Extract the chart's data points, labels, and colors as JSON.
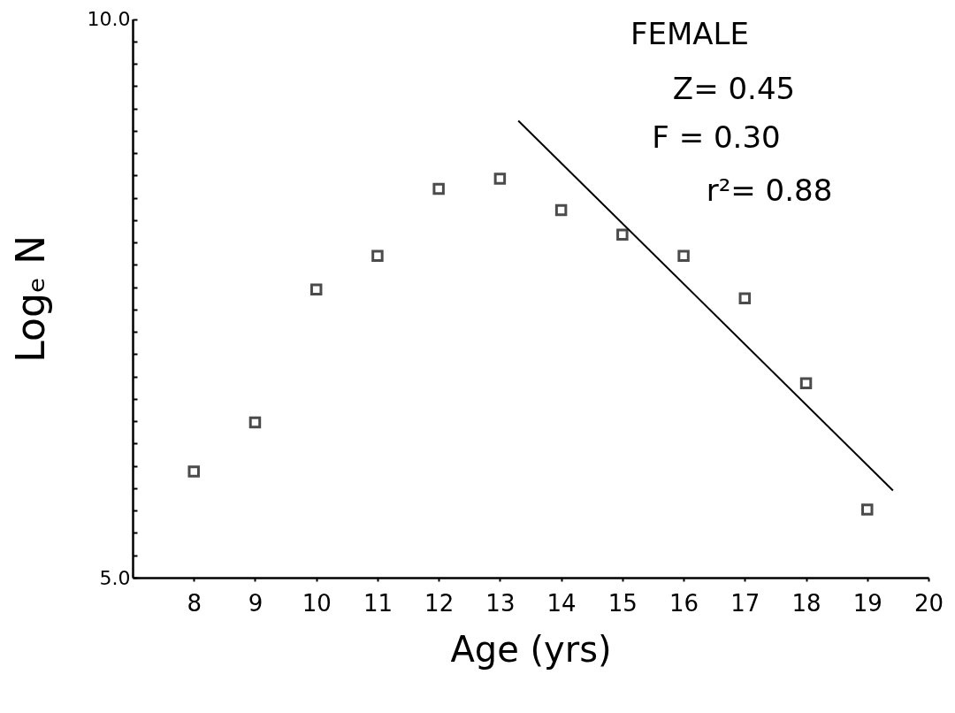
{
  "chart_data": {
    "type": "scatter",
    "xlabel": "Age (yrs)",
    "ylabel": "Logₑ N",
    "xlim": [
      7,
      20
    ],
    "ylim": [
      5,
      10
    ],
    "xticks": [
      8,
      9,
      10,
      11,
      12,
      13,
      14,
      15,
      16,
      17,
      18,
      19,
      20
    ],
    "yticks": [
      {
        "value": 5,
        "label": "5.0"
      },
      {
        "value": 5.2,
        "label": null
      },
      {
        "value": 5.4,
        "label": null
      },
      {
        "value": 5.6,
        "label": null
      },
      {
        "value": 5.8,
        "label": null
      },
      {
        "value": 6,
        "label": null
      },
      {
        "value": 6.2,
        "label": null
      },
      {
        "value": 6.4,
        "label": null
      },
      {
        "value": 6.6,
        "label": null
      },
      {
        "value": 6.8,
        "label": null
      },
      {
        "value": 7,
        "label": null
      },
      {
        "value": 7.2,
        "label": null
      },
      {
        "value": 7.4,
        "label": null
      },
      {
        "value": 7.6,
        "label": null
      },
      {
        "value": 7.8,
        "label": null
      },
      {
        "value": 8,
        "label": null
      },
      {
        "value": 8.2,
        "label": null
      },
      {
        "value": 8.4,
        "label": null
      },
      {
        "value": 8.6,
        "label": null
      },
      {
        "value": 8.8,
        "label": null
      },
      {
        "value": 9,
        "label": null
      },
      {
        "value": 9.2,
        "label": null
      },
      {
        "value": 9.4,
        "label": null
      },
      {
        "value": 9.6,
        "label": null
      },
      {
        "value": 9.8,
        "label": null
      },
      {
        "value": 10,
        "label": "10.0"
      }
    ],
    "series": [
      {
        "marker": "square",
        "color": "#000000",
        "x": [
          8,
          9,
          10,
          11,
          12,
          13,
          14,
          15,
          16,
          17,
          18,
          19
        ],
        "values": [
          5.95,
          6.39,
          7.58,
          7.88,
          8.48,
          8.57,
          8.29,
          8.07,
          7.88,
          7.5,
          6.74,
          5.61
        ]
      },
      {
        "type": "line",
        "marker": "none",
        "color": "#000000",
        "x": [
          13.3,
          19.42
        ],
        "values": [
          9.09,
          5.78
        ]
      }
    ],
    "annotations": [
      "FEMALE",
      "Z= 0.45",
      "F = 0.30",
      "r²= 0.88"
    ]
  }
}
